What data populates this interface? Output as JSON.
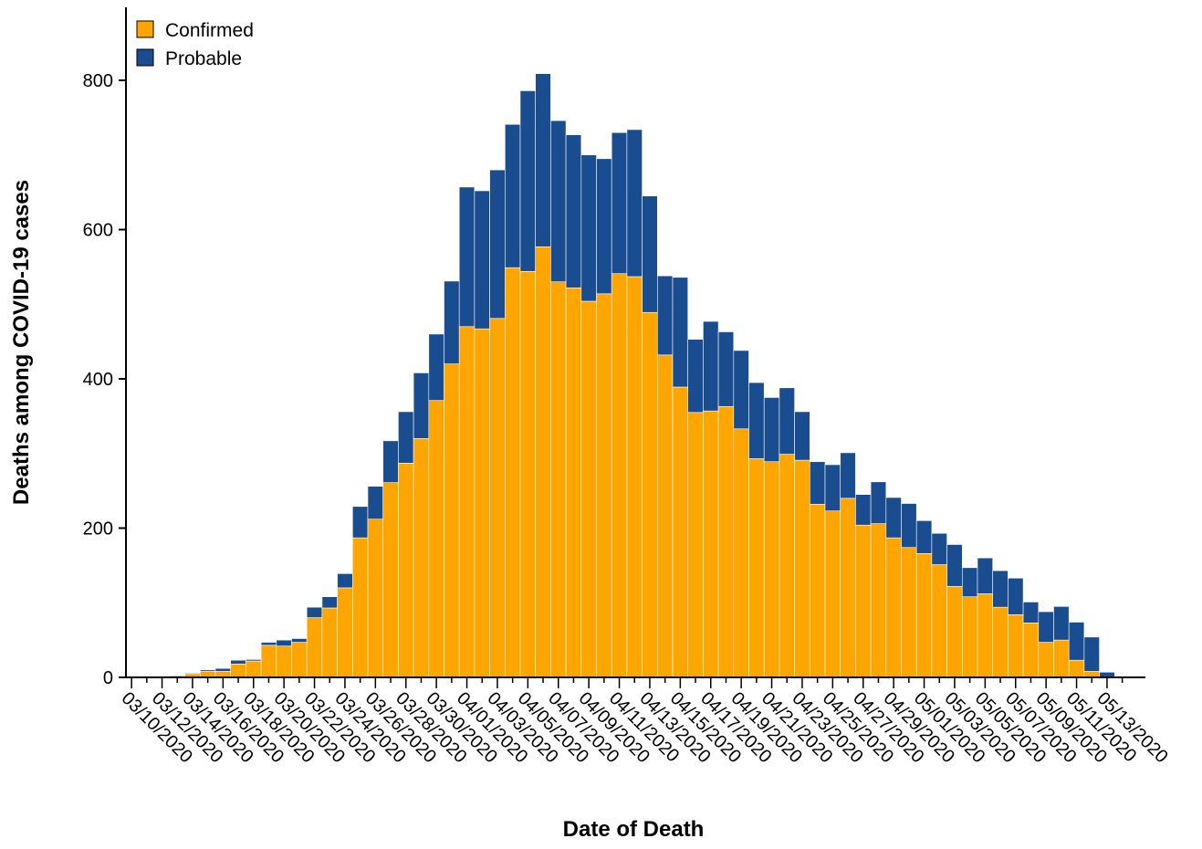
{
  "chart_data": {
    "type": "bar",
    "stacked": true,
    "title": "",
    "xlabel": "Date of Death",
    "ylabel": "Deaths among COVID-19 cases",
    "ylim": [
      0,
      880
    ],
    "yticks": [
      0,
      200,
      400,
      600,
      800
    ],
    "grid": false,
    "legend_position": "top-left",
    "categories": [
      "03/10/2020",
      "03/11/2020",
      "03/12/2020",
      "03/13/2020",
      "03/14/2020",
      "03/15/2020",
      "03/16/2020",
      "03/17/2020",
      "03/18/2020",
      "03/19/2020",
      "03/20/2020",
      "03/21/2020",
      "03/22/2020",
      "03/23/2020",
      "03/24/2020",
      "03/25/2020",
      "03/26/2020",
      "03/27/2020",
      "03/28/2020",
      "03/29/2020",
      "03/30/2020",
      "03/31/2020",
      "04/01/2020",
      "04/02/2020",
      "04/03/2020",
      "04/04/2020",
      "04/05/2020",
      "04/06/2020",
      "04/07/2020",
      "04/08/2020",
      "04/09/2020",
      "04/10/2020",
      "04/11/2020",
      "04/12/2020",
      "04/13/2020",
      "04/14/2020",
      "04/15/2020",
      "04/16/2020",
      "04/17/2020",
      "04/18/2020",
      "04/19/2020",
      "04/20/2020",
      "04/21/2020",
      "04/22/2020",
      "04/23/2020",
      "04/24/2020",
      "04/25/2020",
      "04/26/2020",
      "04/27/2020",
      "04/28/2020",
      "04/29/2020",
      "04/30/2020",
      "05/01/2020",
      "05/02/2020",
      "05/03/2020",
      "05/04/2020",
      "05/05/2020",
      "05/06/2020",
      "05/07/2020",
      "05/08/2020",
      "05/09/2020",
      "05/10/2020",
      "05/11/2020",
      "05/12/2020",
      "05/13/2020",
      "05/14/2020"
    ],
    "tick_labels": [
      "03/10/2020",
      "03/12/2020",
      "03/14/2020",
      "03/16/2020",
      "03/18/2020",
      "03/20/2020",
      "03/22/2020",
      "03/24/2020",
      "03/26/2020",
      "03/28/2020",
      "03/30/2020",
      "04/01/2020",
      "04/03/2020",
      "04/05/2020",
      "04/07/2020",
      "04/09/2020",
      "04/11/2020",
      "04/13/2020",
      "04/15/2020",
      "04/17/2020",
      "04/19/2020",
      "04/21/2020",
      "04/23/2020",
      "04/25/2020",
      "04/27/2020",
      "04/29/2020",
      "05/01/2020",
      "05/03/2020",
      "05/05/2020",
      "05/07/2020",
      "05/09/2020",
      "05/11/2020",
      "05/13/2020"
    ],
    "series": [
      {
        "name": "Confirmed",
        "color": "#FFA500",
        "values": [
          0,
          0,
          0,
          1,
          5,
          8,
          8,
          18,
          22,
          43,
          42,
          47,
          80,
          93,
          120,
          187,
          212,
          261,
          287,
          320,
          371,
          420,
          470,
          467,
          481,
          549,
          544,
          577,
          530,
          522,
          504,
          514,
          541,
          537,
          489,
          432,
          389,
          355,
          357,
          363,
          333,
          293,
          289,
          299,
          291,
          232,
          223,
          240,
          204,
          206,
          187,
          174,
          166,
          151,
          122,
          108,
          112,
          94,
          84,
          73,
          47,
          50,
          23,
          8,
          0,
          0
        ]
      },
      {
        "name": "Probable",
        "color": "#1A4D8F",
        "values": [
          1,
          1,
          1,
          1,
          1,
          2,
          4,
          5,
          2,
          4,
          8,
          5,
          14,
          15,
          19,
          42,
          44,
          56,
          69,
          88,
          89,
          111,
          187,
          185,
          199,
          192,
          242,
          232,
          216,
          205,
          196,
          181,
          189,
          197,
          156,
          106,
          147,
          98,
          120,
          100,
          105,
          102,
          86,
          89,
          65,
          57,
          62,
          61,
          41,
          56,
          54,
          59,
          44,
          42,
          56,
          39,
          48,
          49,
          49,
          28,
          41,
          45,
          51,
          46,
          7,
          0
        ]
      }
    ]
  }
}
